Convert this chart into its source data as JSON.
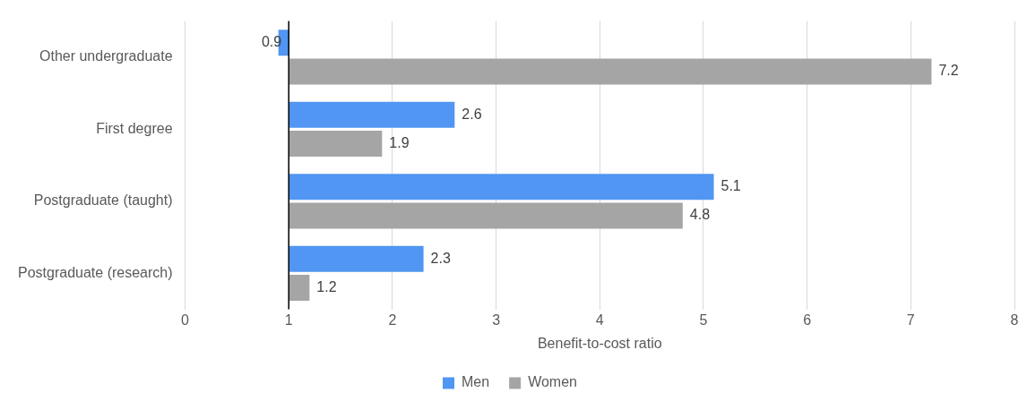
{
  "chart_data": {
    "type": "bar",
    "orientation": "horizontal",
    "xlabel": "Benefit-to-cost ratio",
    "categories": [
      "Other undergraduate",
      "First degree",
      "Postgraduate (taught)",
      "Postgraduate (research)"
    ],
    "series": [
      {
        "name": "Men",
        "color": "#5096f2",
        "base": [
          1,
          1,
          1,
          1
        ],
        "values": [
          -0.1,
          1.6,
          4.1,
          1.3
        ],
        "value_labels": [
          "0.9",
          "2.6",
          "5.1",
          "2.3"
        ]
      },
      {
        "name": "Women",
        "color": "#a5a5a5",
        "base": [
          1,
          1,
          1,
          1
        ],
        "values": [
          6.2,
          0.9,
          3.8,
          0.2
        ],
        "value_labels": [
          "7.2",
          "1.9",
          "4.8",
          "1.2"
        ]
      }
    ],
    "xlim": [
      0,
      8
    ],
    "xticks": [
      0,
      1,
      2,
      3,
      4,
      5,
      6,
      7,
      8
    ],
    "ref_lines": [
      {
        "axis": "x",
        "value": 1,
        "color": "#000000"
      }
    ],
    "grid": "x",
    "legend": "bottom"
  }
}
